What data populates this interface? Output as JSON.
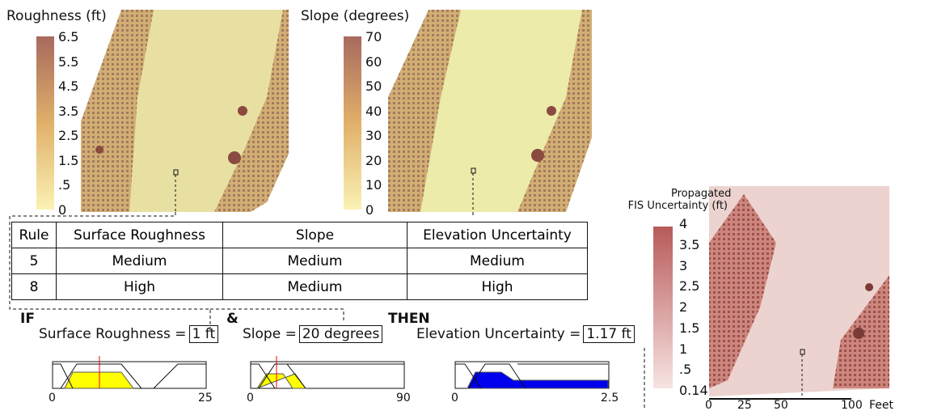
{
  "roughness_map": {
    "title": "Roughness (ft)",
    "colorbar_labels": [
      "6.5",
      "5.5",
      "4.5",
      "3.5",
      "2.5",
      "1.5",
      ".5",
      "0"
    ]
  },
  "slope_map": {
    "title": "Slope (degrees)",
    "colorbar_labels": [
      "70",
      "60",
      "50",
      "40",
      "30",
      "20",
      "10",
      "0"
    ]
  },
  "rule_table": {
    "header": [
      "Rule",
      "Surface Roughness",
      "Slope",
      "Elevation Uncertainty"
    ],
    "rows": [
      [
        "5",
        "Medium",
        "Medium",
        "Medium"
      ],
      [
        "8",
        "High",
        "Medium",
        "High"
      ]
    ]
  },
  "rule_keywords": {
    "if": "IF",
    "and": "&",
    "then": "THEN"
  },
  "inputs": [
    {
      "label": "Surface Roughness =",
      "value": "1 ft",
      "axis": [
        "0",
        "25"
      ]
    },
    {
      "label": "Slope =",
      "value": "20 degrees",
      "axis": [
        "0",
        "90"
      ]
    },
    {
      "label": "Elevation Uncertainty =",
      "value": "1.17 ft",
      "axis": [
        "0",
        "2.5"
      ]
    }
  ],
  "output_map": {
    "title_lines": [
      "Propagated",
      "FIS Uncertainty (ft)"
    ],
    "colorbar_labels": [
      "4",
      "3.5",
      "3",
      "2.5",
      "2",
      "1.5",
      "1",
      ".5",
      "0.14"
    ],
    "scale_labels": [
      "0",
      "25",
      "50",
      "100"
    ],
    "scale_unit": "Feet"
  }
}
